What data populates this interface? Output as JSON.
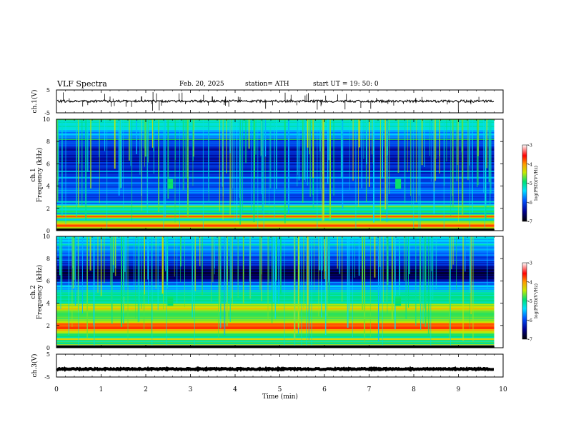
{
  "header": {
    "title": "VLF  Spectra",
    "date": "Feb. 20, 2025",
    "station": "station= ATH",
    "start": "start  UT  =    19: 50: 0"
  },
  "chart_data": [
    {
      "type": "line",
      "panel": "ch1_waveform",
      "ylabel": "ch.1(V)",
      "ylim": [
        -5,
        5
      ],
      "yticks": [
        "5",
        "-5"
      ],
      "xlim": [
        0,
        10
      ],
      "x_extent_min": 9.8,
      "series": [
        {
          "baseline_volts": 0.1,
          "noise_volts": 0.5,
          "spike_count": 60,
          "color": "#000000"
        }
      ]
    },
    {
      "type": "heatmap",
      "panel": "ch1_spectrogram",
      "ylabel_top": "ch.1",
      "ylabel": "Frequency  (kHz)",
      "ylim": [
        0,
        10
      ],
      "yticks": [
        "10",
        "8",
        "6",
        "4",
        "2",
        "0"
      ],
      "xlim": [
        0,
        10
      ],
      "x_extent_min": 9.8,
      "colorbar": {
        "label": "log(PSD)(V²/Hz)",
        "range": [
          -7,
          -3
        ],
        "ticks": [
          "-3",
          "-4",
          "-5",
          "-6",
          "-7"
        ]
      },
      "log_psd_profile": [
        {
          "khz": 0.0,
          "v": -6.8
        },
        {
          "khz": 0.2,
          "v": -4.5
        },
        {
          "khz": 0.5,
          "v": -3.8
        },
        {
          "khz": 0.8,
          "v": -4.6
        },
        {
          "khz": 1.0,
          "v": -5.6
        },
        {
          "khz": 1.3,
          "v": -3.7
        },
        {
          "khz": 1.6,
          "v": -5.9
        },
        {
          "khz": 2.0,
          "v": -5.2
        },
        {
          "khz": 2.2,
          "v": -4.6
        },
        {
          "khz": 2.4,
          "v": -5.8
        },
        {
          "khz": 3.0,
          "v": -6.1
        },
        {
          "khz": 3.5,
          "v": -5.7
        },
        {
          "khz": 4.0,
          "v": -6.0
        },
        {
          "khz": 5.0,
          "v": -6.1
        },
        {
          "khz": 6.0,
          "v": -6.2
        },
        {
          "khz": 7.0,
          "v": -6.4
        },
        {
          "khz": 8.0,
          "v": -6.0
        },
        {
          "khz": 9.0,
          "v": -5.4
        },
        {
          "khz": 10.0,
          "v": -5.0
        }
      ],
      "bright_patches_min": [
        2.55,
        7.65
      ]
    },
    {
      "type": "heatmap",
      "panel": "ch2_spectrogram",
      "ylabel_top": "ch.2",
      "ylabel": "Frequency  (kHz)",
      "ylim": [
        0,
        10
      ],
      "yticks": [
        "10",
        "8",
        "6",
        "4",
        "2",
        "0"
      ],
      "xlim": [
        0,
        10
      ],
      "x_extent_min": 9.8,
      "colorbar": {
        "label": "log(PSD)(V²/Hz)",
        "range": [
          -7,
          -3
        ],
        "ticks": [
          "-3",
          "-4",
          "-5",
          "-6",
          "-7"
        ]
      },
      "log_psd_profile": [
        {
          "khz": 0.0,
          "v": -6.8
        },
        {
          "khz": 0.3,
          "v": -5.0
        },
        {
          "khz": 0.6,
          "v": -4.8
        },
        {
          "khz": 1.0,
          "v": -5.1
        },
        {
          "khz": 1.4,
          "v": -4.6
        },
        {
          "khz": 1.9,
          "v": -3.6
        },
        {
          "khz": 2.2,
          "v": -4.1
        },
        {
          "khz": 2.6,
          "v": -4.8
        },
        {
          "khz": 3.0,
          "v": -4.9
        },
        {
          "khz": 3.6,
          "v": -4.3
        },
        {
          "khz": 4.0,
          "v": -5.0
        },
        {
          "khz": 4.6,
          "v": -5.0
        },
        {
          "khz": 5.5,
          "v": -5.6
        },
        {
          "khz": 6.5,
          "v": -6.8
        },
        {
          "khz": 7.5,
          "v": -6.3
        },
        {
          "khz": 8.5,
          "v": -5.7
        },
        {
          "khz": 10.0,
          "v": -5.3
        }
      ],
      "bright_patches_min": [
        2.55,
        7.65
      ]
    },
    {
      "type": "line",
      "panel": "ch3_waveform",
      "ylabel": "ch.3(V)",
      "ylim": [
        -5,
        5
      ],
      "yticks": [
        "5",
        "-5"
      ],
      "xlim": [
        0,
        10
      ],
      "x_extent_min": 9.8,
      "xlabel": "Time  (min)",
      "xticks": [
        "0",
        "1",
        "2",
        "3",
        "4",
        "5",
        "6",
        "7",
        "8",
        "9",
        "10"
      ],
      "series": [
        {
          "baseline_volts": -1.5,
          "noise_volts": 0.25,
          "color": "#000000"
        }
      ]
    }
  ]
}
